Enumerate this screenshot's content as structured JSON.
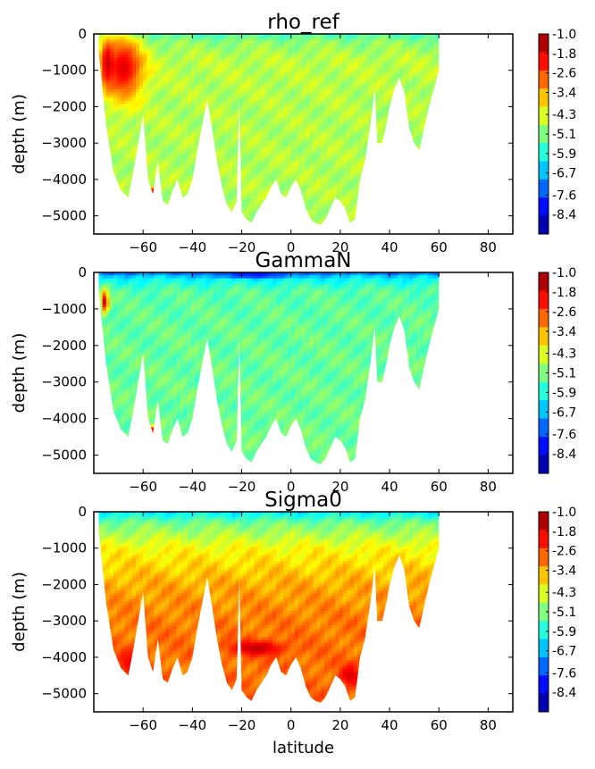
{
  "chart_data": [
    {
      "type": "heatmap",
      "title": "rho_ref",
      "xlabel": "",
      "ylabel": "depth (m)",
      "xlim": [
        -80,
        90
      ],
      "ylim": [
        -5500,
        0
      ],
      "xticks": [
        -60,
        -40,
        -20,
        0,
        20,
        40,
        60,
        80
      ],
      "yticks": [
        0,
        -1000,
        -2000,
        -3000,
        -4000,
        -5000
      ],
      "xtick_labels": [
        "−60",
        "−40",
        "−20",
        "0",
        "20",
        "40",
        "60",
        "80"
      ],
      "ytick_labels": [
        "0",
        "−1000",
        "−2000",
        "−3000",
        "−4000",
        "−5000"
      ],
      "colorbar": {
        "levels": [
          -1.0,
          -1.8,
          -2.6,
          -3.4,
          -4.3,
          -5.1,
          -5.9,
          -6.7,
          -7.6,
          -8.4
        ],
        "labels": [
          "-1.0",
          "-1.8",
          "-2.6",
          "-3.4",
          "-4.3",
          "-5.1",
          "-5.9",
          "-6.7",
          "-7.6",
          "-8.4"
        ],
        "vmin": -9.2,
        "vmax": -1.0
      },
      "data_extent": {
        "lat_min": -78,
        "lat_max": 60
      },
      "bottom_profile": [
        [
          -78,
          -500
        ],
        [
          -75,
          -2500
        ],
        [
          -72,
          -3800
        ],
        [
          -69,
          -4300
        ],
        [
          -66,
          -4500
        ],
        [
          -64,
          -3800
        ],
        [
          -62,
          -3000
        ],
        [
          -60,
          -2200
        ],
        [
          -58,
          -4000
        ],
        [
          -56,
          -4400
        ],
        [
          -54,
          -3500
        ],
        [
          -52,
          -4600
        ],
        [
          -50,
          -4700
        ],
        [
          -48,
          -4300
        ],
        [
          -46,
          -4000
        ],
        [
          -44,
          -4500
        ],
        [
          -42,
          -4400
        ],
        [
          -40,
          -4000
        ],
        [
          -38,
          -3200
        ],
        [
          -36,
          -2500
        ],
        [
          -34,
          -1800
        ],
        [
          -32,
          -2600
        ],
        [
          -30,
          -3500
        ],
        [
          -28,
          -4200
        ],
        [
          -26,
          -4700
        ],
        [
          -24,
          -4900
        ],
        [
          -22,
          -4600
        ],
        [
          -21,
          -1800
        ],
        [
          -20,
          -4900
        ],
        [
          -18,
          -5100
        ],
        [
          -16,
          -5200
        ],
        [
          -14,
          -4900
        ],
        [
          -12,
          -4700
        ],
        [
          -10,
          -4500
        ],
        [
          -8,
          -4200
        ],
        [
          -6,
          -4000
        ],
        [
          -4,
          -4400
        ],
        [
          -2,
          -4500
        ],
        [
          0,
          -4200
        ],
        [
          2,
          -4000
        ],
        [
          4,
          -4300
        ],
        [
          6,
          -4800
        ],
        [
          8,
          -5100
        ],
        [
          10,
          -5200
        ],
        [
          12,
          -5250
        ],
        [
          14,
          -5100
        ],
        [
          16,
          -4800
        ],
        [
          18,
          -4500
        ],
        [
          20,
          -4600
        ],
        [
          22,
          -4800
        ],
        [
          24,
          -5200
        ],
        [
          26,
          -5100
        ],
        [
          28,
          -4000
        ],
        [
          30,
          -3500
        ],
        [
          32,
          -2600
        ],
        [
          34,
          -1500
        ],
        [
          35,
          -3000
        ],
        [
          37,
          -3000
        ],
        [
          39,
          -2400
        ],
        [
          40,
          -2000
        ],
        [
          42,
          -1500
        ],
        [
          44,
          -1200
        ],
        [
          46,
          -1600
        ],
        [
          48,
          -2600
        ],
        [
          50,
          -3000
        ],
        [
          52,
          -3200
        ],
        [
          54,
          -2600
        ],
        [
          56,
          -2000
        ],
        [
          58,
          -1500
        ],
        [
          60,
          -1000
        ]
      ],
      "field_profile": [
        [
          0,
          -5.6
        ],
        [
          200,
          -5.0
        ],
        [
          700,
          -4.6
        ],
        [
          2000,
          -4.7
        ],
        [
          5500,
          -4.7
        ]
      ],
      "features": [
        {
          "lat": [
            -76,
            -60
          ],
          "depth": [
            -80,
            -1800
          ],
          "value": -1.8
        },
        {
          "lat": [
            -77,
            -72
          ],
          "depth": [
            -200,
            -1400
          ],
          "value": -1.6
        },
        {
          "lat": [
            -57,
            -55
          ],
          "depth": [
            -4200,
            -4450
          ],
          "value": -1.5
        }
      ]
    },
    {
      "type": "heatmap",
      "title": "GammaN",
      "xlabel": "",
      "ylabel": "depth (m)",
      "xlim": [
        -80,
        90
      ],
      "ylim": [
        -5500,
        0
      ],
      "xticks": [
        -60,
        -40,
        -20,
        0,
        20,
        40,
        60,
        80
      ],
      "yticks": [
        0,
        -1000,
        -2000,
        -3000,
        -4000,
        -5000
      ],
      "xtick_labels": [
        "−60",
        "−40",
        "−20",
        "0",
        "20",
        "40",
        "60",
        "80"
      ],
      "ytick_labels": [
        "0",
        "−1000",
        "−2000",
        "−3000",
        "−4000",
        "−5000"
      ],
      "colorbar": {
        "levels": [
          -1.0,
          -1.8,
          -2.6,
          -3.4,
          -4.3,
          -5.1,
          -5.9,
          -6.7,
          -7.6,
          -8.4
        ],
        "labels": [
          "-1.0",
          "-1.8",
          "-2.6",
          "-3.4",
          "-4.3",
          "-5.1",
          "-5.9",
          "-6.7",
          "-7.6",
          "-8.4"
        ],
        "vmin": -9.2,
        "vmax": -1.0
      },
      "data_extent": {
        "lat_min": -78,
        "lat_max": 60
      },
      "bottom_profile": [
        [
          -78,
          -500
        ],
        [
          -75,
          -2500
        ],
        [
          -72,
          -3800
        ],
        [
          -69,
          -4300
        ],
        [
          -66,
          -4500
        ],
        [
          -64,
          -3800
        ],
        [
          -62,
          -3000
        ],
        [
          -60,
          -2200
        ],
        [
          -58,
          -4000
        ],
        [
          -56,
          -4400
        ],
        [
          -54,
          -3500
        ],
        [
          -52,
          -4600
        ],
        [
          -50,
          -4700
        ],
        [
          -48,
          -4300
        ],
        [
          -46,
          -4000
        ],
        [
          -44,
          -4500
        ],
        [
          -42,
          -4400
        ],
        [
          -40,
          -4000
        ],
        [
          -38,
          -3200
        ],
        [
          -36,
          -2500
        ],
        [
          -34,
          -1800
        ],
        [
          -32,
          -2600
        ],
        [
          -30,
          -3500
        ],
        [
          -28,
          -4200
        ],
        [
          -26,
          -4700
        ],
        [
          -24,
          -4900
        ],
        [
          -22,
          -4600
        ],
        [
          -21,
          -1800
        ],
        [
          -20,
          -4900
        ],
        [
          -18,
          -5100
        ],
        [
          -16,
          -5200
        ],
        [
          -14,
          -4900
        ],
        [
          -12,
          -4700
        ],
        [
          -10,
          -4500
        ],
        [
          -8,
          -4200
        ],
        [
          -6,
          -4000
        ],
        [
          -4,
          -4400
        ],
        [
          -2,
          -4500
        ],
        [
          0,
          -4200
        ],
        [
          2,
          -4000
        ],
        [
          4,
          -4300
        ],
        [
          6,
          -4800
        ],
        [
          8,
          -5100
        ],
        [
          10,
          -5200
        ],
        [
          12,
          -5250
        ],
        [
          14,
          -5100
        ],
        [
          16,
          -4800
        ],
        [
          18,
          -4500
        ],
        [
          20,
          -4600
        ],
        [
          22,
          -4800
        ],
        [
          24,
          -5200
        ],
        [
          26,
          -5100
        ],
        [
          28,
          -4000
        ],
        [
          30,
          -3500
        ],
        [
          32,
          -2600
        ],
        [
          34,
          -1500
        ],
        [
          35,
          -3000
        ],
        [
          37,
          -3000
        ],
        [
          39,
          -2400
        ],
        [
          40,
          -2000
        ],
        [
          42,
          -1500
        ],
        [
          44,
          -1200
        ],
        [
          46,
          -1600
        ],
        [
          48,
          -2600
        ],
        [
          50,
          -3000
        ],
        [
          52,
          -3200
        ],
        [
          54,
          -2600
        ],
        [
          56,
          -2000
        ],
        [
          58,
          -1500
        ],
        [
          60,
          -1000
        ]
      ],
      "field_profile": [
        [
          0,
          -7.4
        ],
        [
          150,
          -6.2
        ],
        [
          500,
          -5.4
        ],
        [
          1500,
          -5.3
        ],
        [
          5500,
          -5.2
        ]
      ],
      "features": [
        {
          "lat": [
            -77,
            -74
          ],
          "depth": [
            -500,
            -1100
          ],
          "value": -1.6
        },
        {
          "lat": [
            -57,
            -55
          ],
          "depth": [
            -4200,
            -4450
          ],
          "value": -1.5
        },
        {
          "lat": [
            -30,
            0
          ],
          "depth": [
            0,
            -150
          ],
          "value": -8.2
        }
      ]
    },
    {
      "type": "heatmap",
      "title": "Sigma0",
      "xlabel": "latitude",
      "ylabel": "depth (m)",
      "xlim": [
        -80,
        90
      ],
      "ylim": [
        -5500,
        0
      ],
      "xticks": [
        -60,
        -40,
        -20,
        0,
        20,
        40,
        60,
        80
      ],
      "yticks": [
        0,
        -1000,
        -2000,
        -3000,
        -4000,
        -5000
      ],
      "xtick_labels": [
        "−60",
        "−40",
        "−20",
        "0",
        "20",
        "40",
        "60",
        "80"
      ],
      "ytick_labels": [
        "0",
        "−1000",
        "−2000",
        "−3000",
        "−4000",
        "−5000"
      ],
      "colorbar": {
        "levels": [
          -1.0,
          -1.8,
          -2.6,
          -3.4,
          -4.3,
          -5.1,
          -5.9,
          -6.7,
          -7.6,
          -8.4
        ],
        "labels": [
          "-1.0",
          "-1.8",
          "-2.6",
          "-3.4",
          "-4.3",
          "-5.1",
          "-5.9",
          "-6.7",
          "-7.6",
          "-8.4"
        ],
        "vmin": -9.2,
        "vmax": -1.0
      },
      "data_extent": {
        "lat_min": -78,
        "lat_max": 60
      },
      "bottom_profile": [
        [
          -78,
          -500
        ],
        [
          -75,
          -2500
        ],
        [
          -72,
          -3800
        ],
        [
          -69,
          -4300
        ],
        [
          -66,
          -4500
        ],
        [
          -64,
          -3800
        ],
        [
          -62,
          -3000
        ],
        [
          -60,
          -2200
        ],
        [
          -58,
          -4000
        ],
        [
          -56,
          -4400
        ],
        [
          -54,
          -3500
        ],
        [
          -52,
          -4600
        ],
        [
          -50,
          -4700
        ],
        [
          -48,
          -4300
        ],
        [
          -46,
          -4000
        ],
        [
          -44,
          -4500
        ],
        [
          -42,
          -4400
        ],
        [
          -40,
          -4000
        ],
        [
          -38,
          -3200
        ],
        [
          -36,
          -2500
        ],
        [
          -34,
          -1800
        ],
        [
          -32,
          -2600
        ],
        [
          -30,
          -3500
        ],
        [
          -28,
          -4200
        ],
        [
          -26,
          -4700
        ],
        [
          -24,
          -4900
        ],
        [
          -22,
          -4600
        ],
        [
          -21,
          -1800
        ],
        [
          -20,
          -4900
        ],
        [
          -18,
          -5100
        ],
        [
          -16,
          -5200
        ],
        [
          -14,
          -4900
        ],
        [
          -12,
          -4700
        ],
        [
          -10,
          -4500
        ],
        [
          -8,
          -4200
        ],
        [
          -6,
          -4000
        ],
        [
          -4,
          -4400
        ],
        [
          -2,
          -4500
        ],
        [
          0,
          -4200
        ],
        [
          2,
          -4000
        ],
        [
          4,
          -4300
        ],
        [
          6,
          -4800
        ],
        [
          8,
          -5100
        ],
        [
          10,
          -5200
        ],
        [
          12,
          -5250
        ],
        [
          14,
          -5100
        ],
        [
          16,
          -4800
        ],
        [
          18,
          -4500
        ],
        [
          20,
          -4600
        ],
        [
          22,
          -4800
        ],
        [
          24,
          -5200
        ],
        [
          26,
          -5100
        ],
        [
          28,
          -4000
        ],
        [
          30,
          -3500
        ],
        [
          32,
          -2600
        ],
        [
          34,
          -1500
        ],
        [
          35,
          -3000
        ],
        [
          37,
          -3000
        ],
        [
          39,
          -2400
        ],
        [
          40,
          -2000
        ],
        [
          42,
          -1500
        ],
        [
          44,
          -1200
        ],
        [
          46,
          -1600
        ],
        [
          48,
          -2600
        ],
        [
          50,
          -3000
        ],
        [
          52,
          -3200
        ],
        [
          54,
          -2600
        ],
        [
          56,
          -2000
        ],
        [
          58,
          -1500
        ],
        [
          60,
          -1000
        ]
      ],
      "field_profile": [
        [
          0,
          -6.3
        ],
        [
          300,
          -5.2
        ],
        [
          1000,
          -4.1
        ],
        [
          2000,
          -3.4
        ],
        [
          3000,
          -3.0
        ],
        [
          5500,
          -2.8
        ]
      ],
      "features": [
        {
          "lat": [
            -25,
            -3
          ],
          "depth": [
            -3550,
            -3950
          ],
          "value": -1.5
        },
        {
          "lat": [
            20,
            28
          ],
          "depth": [
            -4200,
            -4800
          ],
          "value": -1.7
        },
        {
          "lat": [
            -70,
            -60
          ],
          "depth": [
            -3800,
            -4500
          ],
          "value": -1.9
        }
      ]
    }
  ]
}
